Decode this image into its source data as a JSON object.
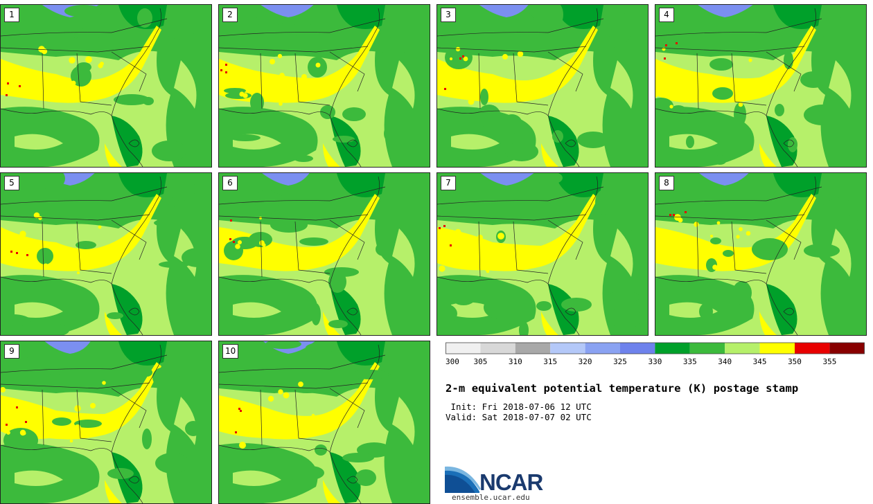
{
  "stamps": [
    {
      "label": "1"
    },
    {
      "label": "2"
    },
    {
      "label": "3"
    },
    {
      "label": "4"
    },
    {
      "label": "5"
    },
    {
      "label": "6"
    },
    {
      "label": "7"
    },
    {
      "label": "8"
    },
    {
      "label": "9"
    },
    {
      "label": "10"
    }
  ],
  "legend": {
    "ticks": [
      "300",
      "305",
      "310",
      "315",
      "320",
      "325",
      "330",
      "335",
      "340",
      "345",
      "350",
      "355"
    ],
    "colors": [
      "#f0f0f0",
      "#d8d8d8",
      "#a8a8a8",
      "#b4c8f8",
      "#8aa2f2",
      "#6e82ec",
      "#00a02a",
      "#3cba3c",
      "#b6f06a",
      "#ffff00",
      "#e80000",
      "#880000"
    ]
  },
  "info": {
    "title": "2-m equivalent potential temperature (K) postage stamp",
    "init": " Init: Fri 2018-07-06 12 UTC",
    "valid": "Valid: Sat 2018-07-07 02 UTC"
  },
  "logo": {
    "text": "NCAR",
    "url": "ensemble.ucar.edu"
  }
}
